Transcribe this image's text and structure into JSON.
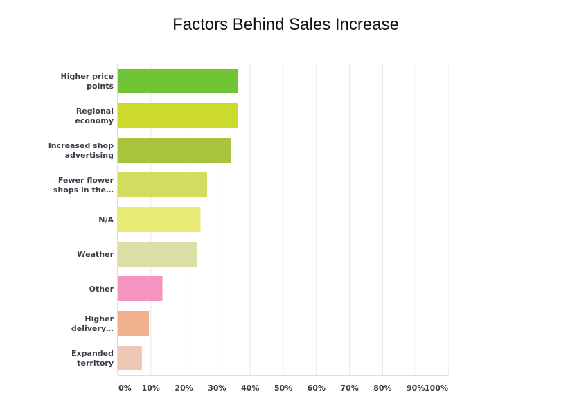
{
  "chart_data": {
    "type": "bar",
    "orientation": "horizontal",
    "title": "Factors Behind Sales Increase",
    "categories": [
      [
        "Higher price",
        "points"
      ],
      [
        "Regional",
        "economy"
      ],
      [
        "Increased shop",
        "advertising"
      ],
      [
        "Fewer flower",
        "shops in the…"
      ],
      [
        "N/A"
      ],
      [
        "Weather"
      ],
      [
        "Other"
      ],
      [
        "Higher",
        "delivery…"
      ],
      [
        "Expanded",
        "territory"
      ]
    ],
    "values": [
      36.4,
      36.4,
      34.3,
      27.0,
      25.0,
      24.0,
      13.5,
      9.4,
      7.3
    ],
    "colors": [
      "#70c536",
      "#ccda2e",
      "#a8c33d",
      "#d4dc60",
      "#e9eb77",
      "#dbdfa5",
      "#f495c1",
      "#f1b08e",
      "#ecc8b5"
    ],
    "xlim": [
      0,
      100
    ],
    "xticks": [
      "0%",
      "10%",
      "20%",
      "30%",
      "40%",
      "50%",
      "60%",
      "70%",
      "80%",
      "90%",
      "100%"
    ],
    "xlabel": "",
    "ylabel": "",
    "grid": true,
    "legend": "none"
  }
}
